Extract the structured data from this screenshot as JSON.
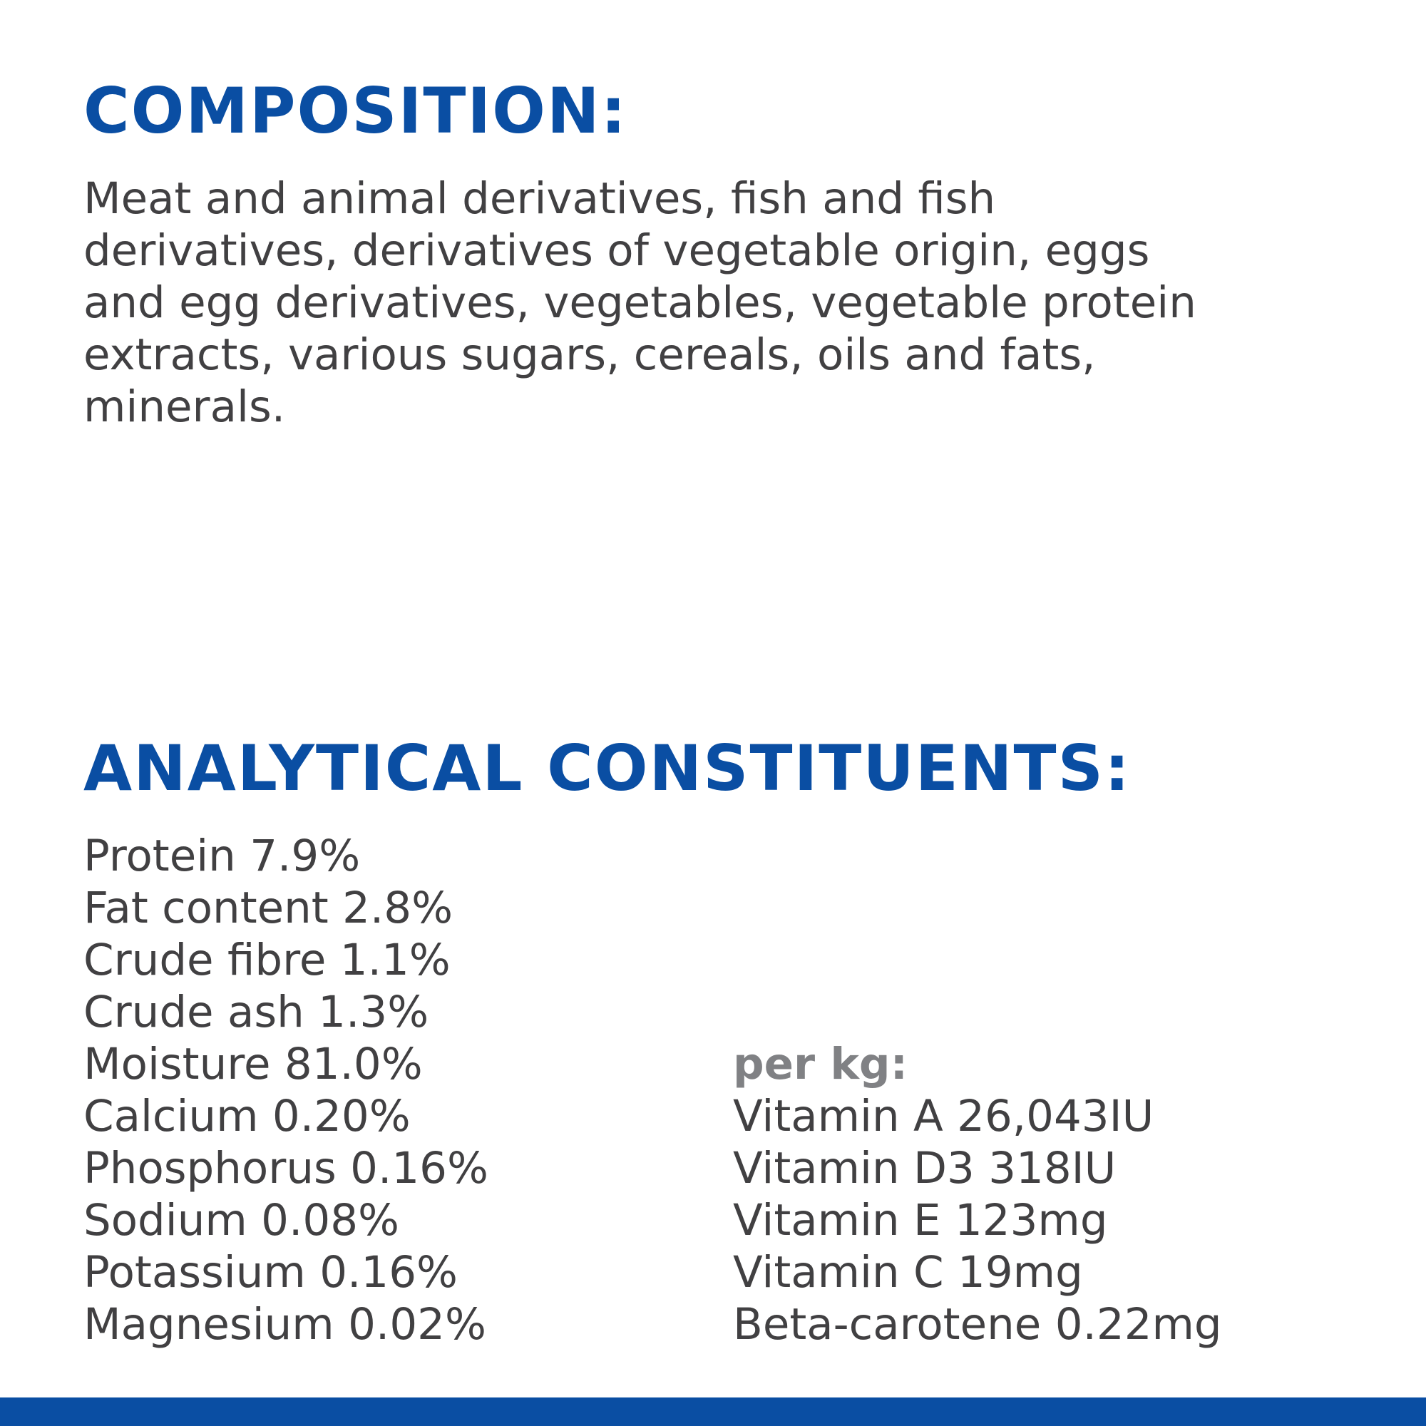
{
  "composition": {
    "heading": "COMPOSITION:",
    "lines": [
      "Meat and animal derivatives, fish and fish",
      "derivatives, derivatives of vegetable origin, eggs",
      "and egg derivatives, vegetables, vegetable protein",
      "extracts, various sugars, cereals, oils and fats,",
      "minerals."
    ]
  },
  "analytical": {
    "heading": "ANALYTICAL CONSTITUENTS:",
    "constituents": [
      "Protein 7.9%",
      "Fat content 2.8%",
      "Crude fibre 1.1%",
      "Crude ash 1.3%",
      "Moisture 81.0%",
      "Calcium 0.20%",
      "Phosphorus 0.16%",
      "Sodium 0.08%",
      "Potassium 0.16%",
      "Magnesium 0.02%"
    ],
    "per_kg": {
      "heading": "per kg:",
      "items": [
        "Vitamin A 26,043IU",
        "Vitamin D3 318IU",
        "Vitamin E 123mg",
        "Vitamin C 19mg",
        "Beta-carotene 0.22mg"
      ]
    }
  }
}
